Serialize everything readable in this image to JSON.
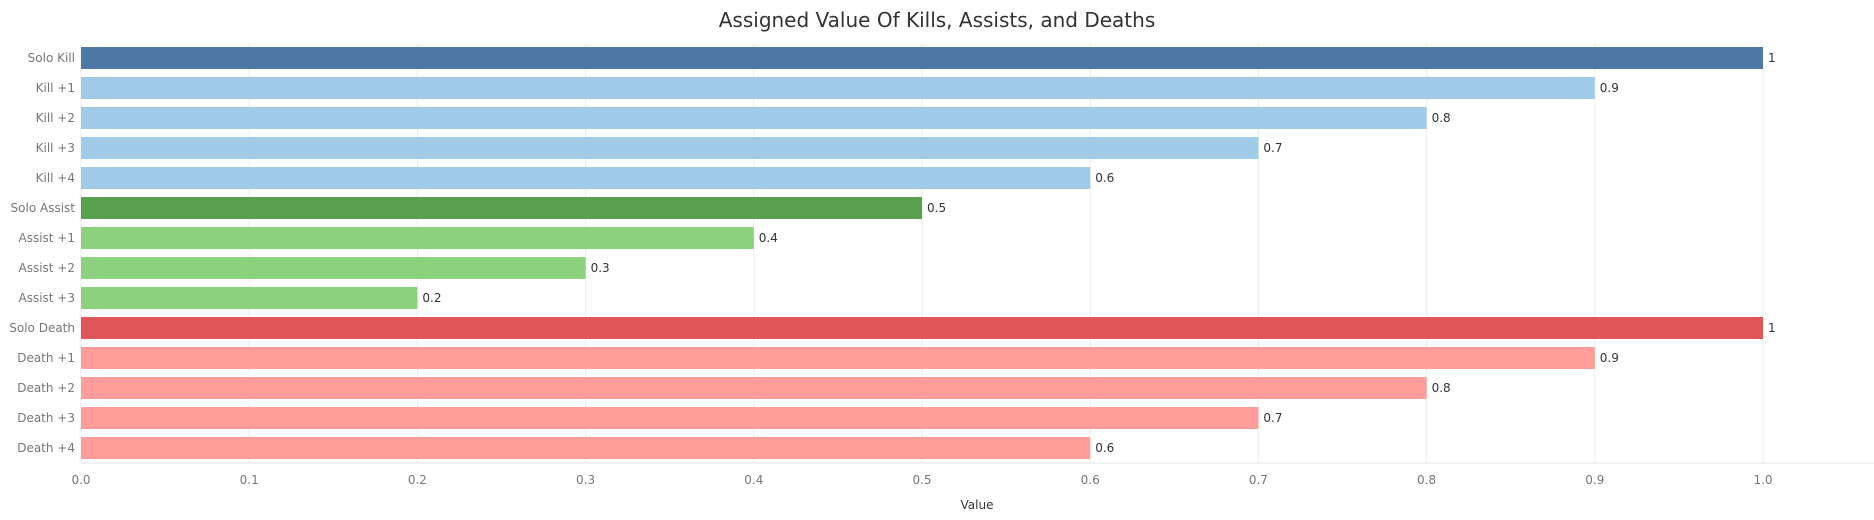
{
  "chart_data": {
    "type": "bar",
    "orientation": "horizontal",
    "title": "Assigned Value Of Kills, Assists, and Deaths",
    "xlabel": "Value",
    "ylabel": "",
    "xlim": [
      0,
      1.0
    ],
    "xticks": [
      "0.0",
      "0.1",
      "0.2",
      "0.3",
      "0.4",
      "0.5",
      "0.6",
      "0.7",
      "0.8",
      "0.9",
      "1.0"
    ],
    "grid": "vertical",
    "categories": [
      "Solo Kill",
      "Kill +1",
      "Kill +2",
      "Kill +3",
      "Kill +4",
      "Solo Assist",
      "Assist +1",
      "Assist +2",
      "Assist +3",
      "Solo Death",
      "Death +1",
      "Death +2",
      "Death +3",
      "Death +4"
    ],
    "values": [
      1,
      0.9,
      0.8,
      0.7,
      0.6,
      0.5,
      0.4,
      0.3,
      0.2,
      1,
      0.9,
      0.8,
      0.7,
      0.6
    ],
    "data_labels": [
      "1",
      "0.9",
      "0.8",
      "0.7",
      "0.6",
      "0.5",
      "0.4",
      "0.3",
      "0.2",
      "1",
      "0.9",
      "0.8",
      "0.7",
      "0.6"
    ],
    "colors": [
      "#4e79a7",
      "#a0cbe8",
      "#a0cbe8",
      "#a0cbe8",
      "#a0cbe8",
      "#59a14f",
      "#8cd17d",
      "#8cd17d",
      "#8cd17d",
      "#e15759",
      "#ff9d9a",
      "#ff9d9a",
      "#ff9d9a",
      "#ff9d9a"
    ]
  }
}
